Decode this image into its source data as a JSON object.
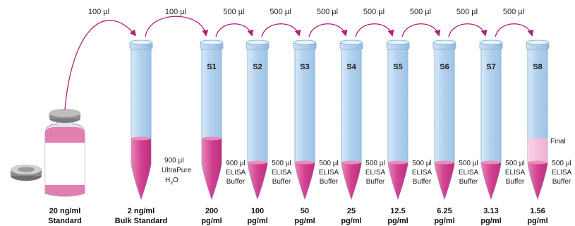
{
  "transfers": [
    {
      "label": "100 µl"
    },
    {
      "label": "100 µl"
    },
    {
      "label": "500 µl"
    },
    {
      "label": "500 µl"
    },
    {
      "label": "500 µl"
    },
    {
      "label": "500 µl"
    },
    {
      "label": "500 µl"
    },
    {
      "label": "500 µl"
    },
    {
      "label": "500 µl"
    }
  ],
  "stock": {
    "conc": "20 ng/ml",
    "name": "Standard"
  },
  "bulk": {
    "conc": "2 ng/ml",
    "name": "Bulk Standard",
    "diluent": [
      "900 µl",
      "UltraPure",
      "H",
      "2",
      "O"
    ]
  },
  "tubes": [
    {
      "label": "S1",
      "conc": "200",
      "unit": "pg/ml",
      "diluent": [
        "900 µl",
        "ELISA",
        "Buffer"
      ]
    },
    {
      "label": "S2",
      "conc": "100",
      "unit": "pg/ml",
      "diluent": [
        "500 µl",
        "ELISA",
        "Buffer"
      ]
    },
    {
      "label": "S3",
      "conc": "50",
      "unit": "pg/ml",
      "diluent": [
        "500 µl",
        "ELISA",
        "Buffer"
      ]
    },
    {
      "label": "S4",
      "conc": "25",
      "unit": "pg/ml",
      "diluent": [
        "500 µl",
        "ELISA",
        "Buffer"
      ]
    },
    {
      "label": "S5",
      "conc": "12.5",
      "unit": "pg/ml",
      "diluent": [
        "500 µl",
        "ELISA",
        "Buffer"
      ]
    },
    {
      "label": "S6",
      "conc": "6.25",
      "unit": "pg/ml",
      "diluent": [
        "500 µl",
        "ELISA",
        "Buffer"
      ]
    },
    {
      "label": "S7",
      "conc": "3.13",
      "unit": "pg/ml",
      "diluent": [
        "500 µl",
        "ELISA",
        "Buffer"
      ]
    },
    {
      "label": "S8",
      "conc": "1.56",
      "unit": "pg/ml",
      "diluent": [
        "500 µl",
        "ELISA",
        "Buffer"
      ],
      "extra": "Final"
    }
  ],
  "colors": {
    "arrow": "#b0207a",
    "tube_fill": "#b9d6ef",
    "tube_stroke": "#8db6d9",
    "liquid": "#d23c8c",
    "liquid_light": "#f2b6d2"
  }
}
